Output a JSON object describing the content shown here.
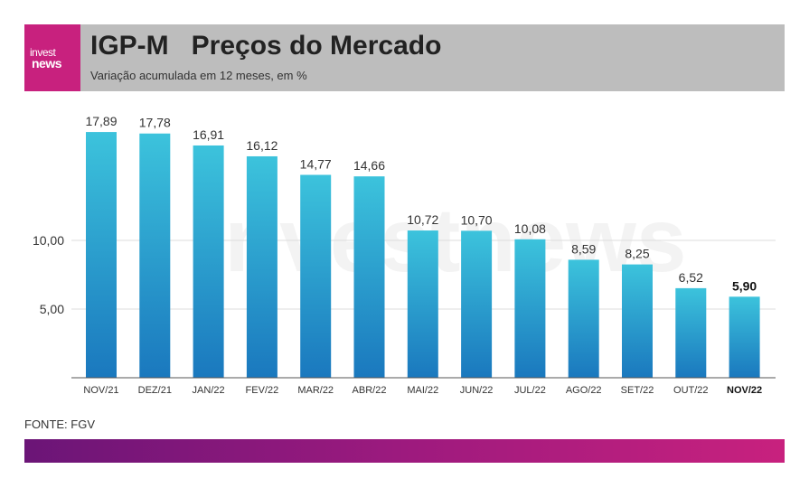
{
  "logo": {
    "line1": "invest",
    "line2": "news"
  },
  "header": {
    "title": "IGP-M   Preços do Mercado",
    "subtitle": "Variação acumulada em 12 meses, em %"
  },
  "source": "FONTE: FGV",
  "watermark": "investnews",
  "colors": {
    "bar_top": "#3cc3dc",
    "bar_bottom": "#1a78be",
    "brand": "#c8217e",
    "header_bg": "#bdbdbd"
  },
  "chart_data": {
    "type": "bar",
    "categories": [
      "NOV/21",
      "DEZ/21",
      "JAN/22",
      "FEV/22",
      "MAR/22",
      "ABR/22",
      "MAI/22",
      "JUN/22",
      "JUL/22",
      "AGO/22",
      "SET/22",
      "OUT/22",
      "NOV/22"
    ],
    "values": [
      17.89,
      17.78,
      16.91,
      16.12,
      14.77,
      14.66,
      10.72,
      10.7,
      10.08,
      8.59,
      8.25,
      6.52,
      5.9
    ],
    "value_labels": [
      "17,89",
      "17,78",
      "16,91",
      "16,12",
      "14,77",
      "14,66",
      "10,72",
      "10,70",
      "10,08",
      "8,59",
      "8,25",
      "6,52",
      "5,90"
    ],
    "highlight_index": 12,
    "yticks": [
      5,
      10
    ],
    "ytick_labels": [
      "5,00",
      "10,00"
    ],
    "ylim": [
      0,
      20
    ],
    "grid": true
  }
}
